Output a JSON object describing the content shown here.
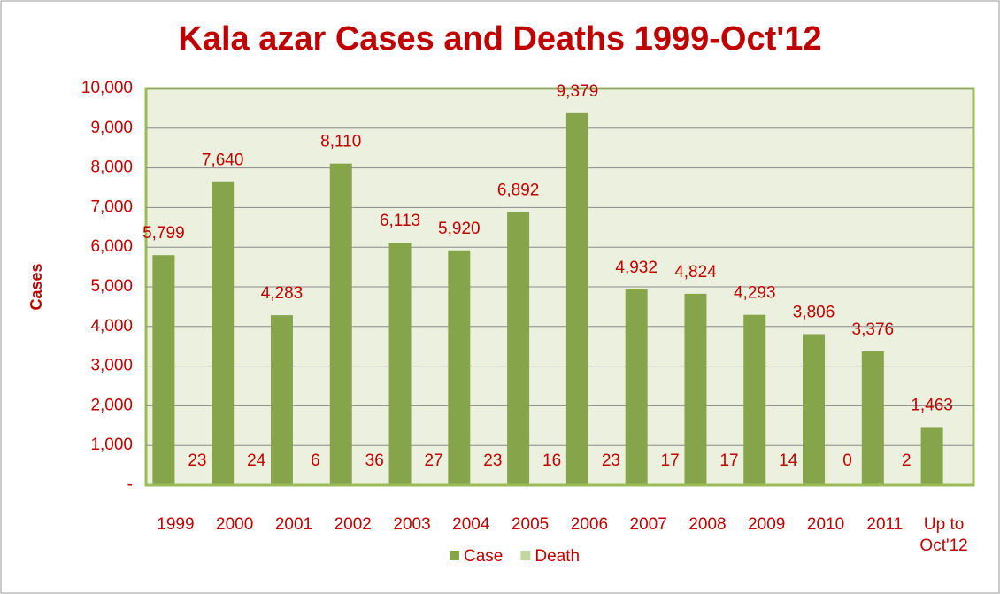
{
  "chart_data": {
    "type": "bar",
    "title": "Kala azar Cases and Deaths 1999-Oct'12",
    "y_label": "Cases",
    "categories": [
      "1999",
      "2000",
      "2001",
      "2002",
      "2003",
      "2004",
      "2005",
      "2006",
      "2007",
      "2008",
      "2009",
      "2010",
      "2011",
      "Up to Oct'12"
    ],
    "series": [
      {
        "name": "Case",
        "color": "#86a44a",
        "values": [
          5799,
          7640,
          4283,
          8110,
          6113,
          5920,
          6892,
          9379,
          4932,
          4824,
          4293,
          3806,
          3376,
          1463
        ],
        "value_labels": [
          "5,799",
          "7,640",
          "4,283",
          "8,110",
          "6,113",
          "5,920",
          "6,892",
          "9,379",
          "4,932",
          "4,824",
          "4,293",
          "3,806",
          "3,376",
          "1,463"
        ]
      },
      {
        "name": "Death",
        "color": "#c3d69b",
        "values": [
          23,
          24,
          6,
          36,
          27,
          23,
          16,
          23,
          17,
          17,
          14,
          0,
          2,
          null
        ]
      }
    ],
    "ylim": [
      0,
      10000
    ],
    "yticks": [
      {
        "value": 0,
        "label": "-"
      },
      {
        "value": 1000,
        "label": "1,000"
      },
      {
        "value": 2000,
        "label": "2,000"
      },
      {
        "value": 3000,
        "label": "3,000"
      },
      {
        "value": 4000,
        "label": "4,000"
      },
      {
        "value": 5000,
        "label": "5,000"
      },
      {
        "value": 6000,
        "label": "6,000"
      },
      {
        "value": 7000,
        "label": "7,000"
      },
      {
        "value": 8000,
        "label": "8,000"
      },
      {
        "value": 9000,
        "label": "9,000"
      },
      {
        "value": 10000,
        "label": "10,000"
      }
    ],
    "grid": true,
    "legend": "bottom"
  }
}
